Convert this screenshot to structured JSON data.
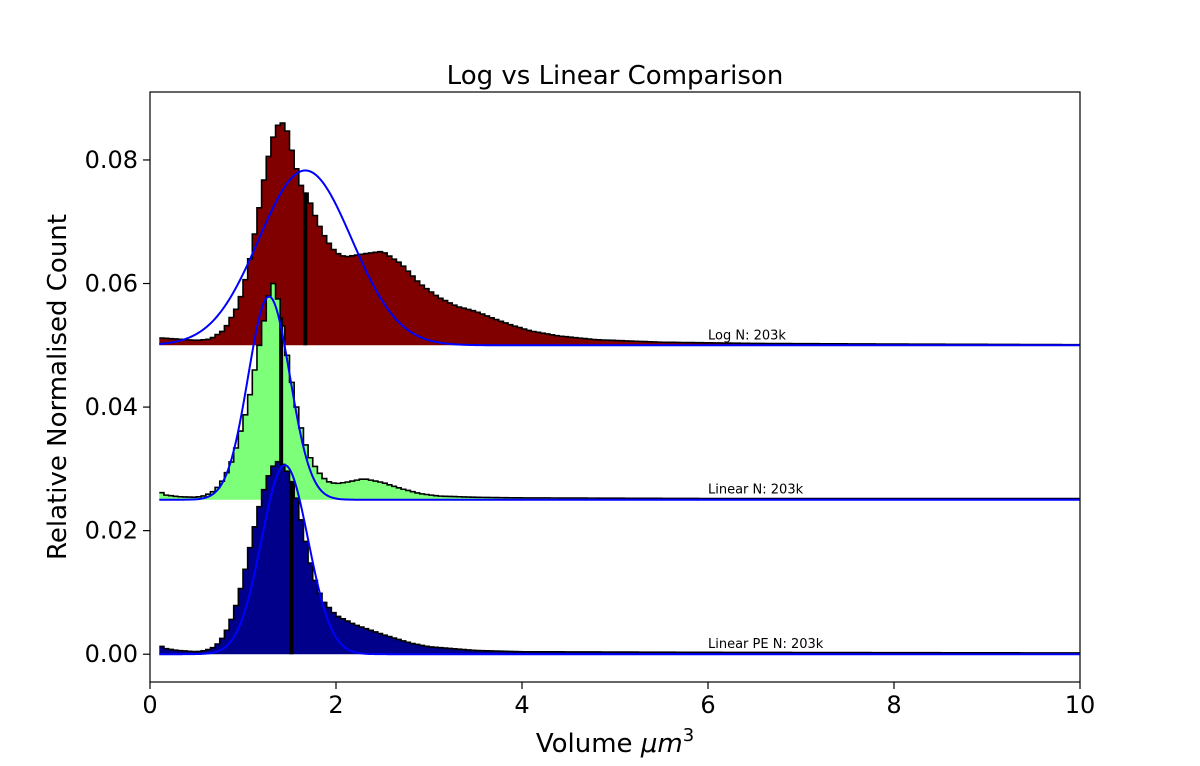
{
  "chart_data": {
    "type": "area",
    "title": "Log vs Linear Comparison",
    "xlabel_text": "Volume ",
    "xlabel_math": "μm",
    "xlabel_sup": "3",
    "ylabel": "Relative Normalised Count",
    "xlim": [
      0,
      10
    ],
    "ylim": [
      -0.0045,
      0.091
    ],
    "x_ticks": [
      "0",
      "2",
      "4",
      "6",
      "8",
      "10"
    ],
    "y_ticks": [
      "0.00",
      "0.02",
      "0.04",
      "0.06",
      "0.08"
    ],
    "grid": false,
    "legend": "none",
    "fit_color": "#0000ff",
    "outline_color": "#000000",
    "series": [
      {
        "name": "Log",
        "annotation": "Log N: 203k",
        "color": "#800000",
        "baseline": 0.05,
        "median_line_x": 1.67,
        "fit": {
          "type": "gaussian",
          "mean": 1.67,
          "sd": 0.5,
          "amp": 0.0283
        },
        "histogram_points": [
          [
            0.1,
            0.0512
          ],
          [
            0.3,
            0.051
          ],
          [
            0.5,
            0.0508
          ],
          [
            0.65,
            0.051
          ],
          [
            0.8,
            0.0525
          ],
          [
            0.95,
            0.0565
          ],
          [
            1.05,
            0.062
          ],
          [
            1.15,
            0.07
          ],
          [
            1.25,
            0.079
          ],
          [
            1.33,
            0.084
          ],
          [
            1.4,
            0.0865
          ],
          [
            1.47,
            0.085
          ],
          [
            1.55,
            0.08
          ],
          [
            1.62,
            0.076
          ],
          [
            1.7,
            0.074
          ],
          [
            1.8,
            0.07
          ],
          [
            1.9,
            0.067
          ],
          [
            2.0,
            0.065
          ],
          [
            2.1,
            0.0643
          ],
          [
            2.3,
            0.0648
          ],
          [
            2.5,
            0.0652
          ],
          [
            2.7,
            0.0632
          ],
          [
            2.9,
            0.06
          ],
          [
            3.1,
            0.0578
          ],
          [
            3.3,
            0.0563
          ],
          [
            3.5,
            0.0555
          ],
          [
            3.7,
            0.0543
          ],
          [
            3.9,
            0.0532
          ],
          [
            4.1,
            0.0523
          ],
          [
            4.4,
            0.0515
          ],
          [
            4.8,
            0.0509
          ],
          [
            5.5,
            0.0505
          ],
          [
            6.5,
            0.0503
          ],
          [
            8.0,
            0.0502
          ],
          [
            10.0,
            0.0501
          ]
        ],
        "line_points": []
      },
      {
        "name": "Linear",
        "annotation": "Linear N: 203k",
        "color": "#7dff7a",
        "baseline": 0.025,
        "median_line_x": 1.41,
        "fit": {
          "type": "gaussian",
          "mean": 1.28,
          "sd": 0.225,
          "amp": 0.0329
        },
        "histogram_points": [
          [
            0.1,
            0.0265
          ],
          [
            0.15,
            0.0258
          ],
          [
            0.3,
            0.0255
          ],
          [
            0.5,
            0.0254
          ],
          [
            0.6,
            0.0257
          ],
          [
            0.7,
            0.0265
          ],
          [
            0.8,
            0.0285
          ],
          [
            0.9,
            0.032
          ],
          [
            1.0,
            0.0375
          ],
          [
            1.05,
            0.04
          ],
          [
            1.1,
            0.044
          ],
          [
            1.2,
            0.052
          ],
          [
            1.27,
            0.0575
          ],
          [
            1.3,
            0.0605
          ],
          [
            1.35,
            0.0595
          ],
          [
            1.4,
            0.0555
          ],
          [
            1.5,
            0.046
          ],
          [
            1.6,
            0.038
          ],
          [
            1.7,
            0.0325
          ],
          [
            1.8,
            0.0297
          ],
          [
            1.9,
            0.028
          ],
          [
            2.0,
            0.0276
          ],
          [
            2.1,
            0.0278
          ],
          [
            2.3,
            0.0284
          ],
          [
            2.5,
            0.0278
          ],
          [
            2.7,
            0.0268
          ],
          [
            2.9,
            0.026
          ],
          [
            3.1,
            0.0256
          ],
          [
            3.5,
            0.0254
          ],
          [
            4.0,
            0.0253
          ],
          [
            6.0,
            0.0252
          ],
          [
            10.0,
            0.0252
          ]
        ],
        "line_points": []
      },
      {
        "name": "Linear PE",
        "annotation": "Linear PE N: 203k",
        "color": "#00008b",
        "baseline": 0.0,
        "median_line_x": 1.52,
        "fit": {
          "type": "gaussian",
          "mean": 1.45,
          "sd": 0.25,
          "amp": 0.0306
        },
        "histogram_points": [
          [
            0.1,
            0.0025
          ],
          [
            0.13,
            0.001
          ],
          [
            0.3,
            0.0006
          ],
          [
            0.5,
            0.0004
          ],
          [
            0.6,
            0.0006
          ],
          [
            0.7,
            0.0012
          ],
          [
            0.8,
            0.003
          ],
          [
            0.9,
            0.0065
          ],
          [
            1.0,
            0.012
          ],
          [
            1.1,
            0.019
          ],
          [
            1.2,
            0.0255
          ],
          [
            1.3,
            0.03
          ],
          [
            1.37,
            0.0312
          ],
          [
            1.45,
            0.0305
          ],
          [
            1.55,
            0.027
          ],
          [
            1.65,
            0.02
          ],
          [
            1.75,
            0.013
          ],
          [
            1.85,
            0.0088
          ],
          [
            2.0,
            0.0063
          ],
          [
            2.2,
            0.0048
          ],
          [
            2.5,
            0.0032
          ],
          [
            2.8,
            0.0018
          ],
          [
            3.0,
            0.0012
          ],
          [
            3.5,
            0.0006
          ],
          [
            4.0,
            0.0004
          ],
          [
            6.0,
            0.0003
          ],
          [
            10.0,
            0.0002
          ]
        ],
        "line_points": []
      }
    ]
  }
}
